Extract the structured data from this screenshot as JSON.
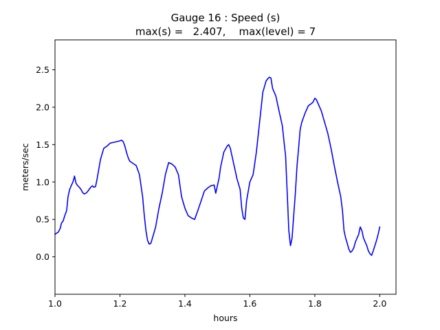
{
  "chart_data": {
    "type": "line",
    "title": "Gauge 16 : Speed (s)",
    "subtitle": "max(s) =   2.407,    max(level) = 7",
    "xlabel": "hours",
    "ylabel": "meters/sec",
    "xlim": [
      1.0,
      2.05
    ],
    "ylim": [
      -0.5,
      2.9
    ],
    "xticks": [
      1.0,
      1.2,
      1.4,
      1.6,
      1.8,
      2.0
    ],
    "xtick_labels": [
      "1.0",
      "1.2",
      "1.4",
      "1.6",
      "1.8",
      "2.0"
    ],
    "yticks": [
      0.0,
      0.5,
      1.0,
      1.5,
      2.0,
      2.5
    ],
    "ytick_labels": [
      "0.0",
      "0.5",
      "1.0",
      "1.5",
      "2.0",
      "2.5"
    ],
    "grid": false,
    "series": [
      {
        "color": "#0000ff",
        "x": [
          1.0,
          1.006,
          1.01,
          1.016,
          1.02,
          1.025,
          1.03,
          1.036,
          1.04,
          1.045,
          1.05,
          1.055,
          1.058,
          1.06,
          1.065,
          1.07,
          1.075,
          1.08,
          1.085,
          1.09,
          1.095,
          1.1,
          1.105,
          1.11,
          1.115,
          1.12,
          1.125,
          1.13,
          1.14,
          1.15,
          1.16,
          1.17,
          1.18,
          1.19,
          1.2,
          1.205,
          1.21,
          1.215,
          1.22,
          1.225,
          1.23,
          1.24,
          1.25,
          1.26,
          1.27,
          1.275,
          1.28,
          1.285,
          1.29,
          1.295,
          1.3,
          1.31,
          1.32,
          1.33,
          1.34,
          1.35,
          1.36,
          1.37,
          1.38,
          1.39,
          1.4,
          1.41,
          1.42,
          1.43,
          1.44,
          1.45,
          1.46,
          1.47,
          1.48,
          1.49,
          1.495,
          1.5,
          1.505,
          1.51,
          1.52,
          1.53,
          1.535,
          1.54,
          1.545,
          1.55,
          1.555,
          1.56,
          1.57,
          1.575,
          1.58,
          1.585,
          1.59,
          1.6,
          1.61,
          1.62,
          1.63,
          1.64,
          1.65,
          1.655,
          1.66,
          1.665,
          1.67,
          1.675,
          1.68,
          1.69,
          1.7,
          1.705,
          1.71,
          1.715,
          1.72,
          1.725,
          1.73,
          1.735,
          1.74,
          1.745,
          1.75,
          1.755,
          1.76,
          1.77,
          1.78,
          1.79,
          1.795,
          1.8,
          1.805,
          1.81,
          1.82,
          1.83,
          1.84,
          1.85,
          1.86,
          1.87,
          1.88,
          1.885,
          1.89,
          1.895,
          1.9,
          1.905,
          1.91,
          1.915,
          1.92,
          1.925,
          1.93,
          1.935,
          1.94,
          1.945,
          1.95,
          1.955,
          1.96,
          1.965,
          1.97,
          1.975,
          1.98,
          1.985,
          1.99,
          1.995,
          2.0
        ],
        "y": [
          0.3,
          0.32,
          0.33,
          0.38,
          0.45,
          0.48,
          0.55,
          0.62,
          0.8,
          0.9,
          0.95,
          1.0,
          1.04,
          1.08,
          0.98,
          0.95,
          0.93,
          0.9,
          0.86,
          0.84,
          0.85,
          0.87,
          0.9,
          0.93,
          0.95,
          0.93,
          0.94,
          1.05,
          1.3,
          1.45,
          1.48,
          1.52,
          1.53,
          1.54,
          1.55,
          1.56,
          1.54,
          1.48,
          1.4,
          1.33,
          1.28,
          1.25,
          1.22,
          1.1,
          0.8,
          0.55,
          0.35,
          0.22,
          0.17,
          0.18,
          0.25,
          0.4,
          0.65,
          0.85,
          1.1,
          1.26,
          1.24,
          1.2,
          1.1,
          0.8,
          0.65,
          0.55,
          0.52,
          0.5,
          0.62,
          0.75,
          0.88,
          0.92,
          0.95,
          0.96,
          0.85,
          0.95,
          1.05,
          1.2,
          1.4,
          1.48,
          1.5,
          1.45,
          1.35,
          1.25,
          1.15,
          1.05,
          0.9,
          0.65,
          0.52,
          0.5,
          0.75,
          1.0,
          1.1,
          1.4,
          1.8,
          2.2,
          2.35,
          2.38,
          2.4,
          2.39,
          2.25,
          2.2,
          2.15,
          1.95,
          1.75,
          1.55,
          1.35,
          0.85,
          0.35,
          0.15,
          0.25,
          0.55,
          0.85,
          1.2,
          1.45,
          1.7,
          1.8,
          1.92,
          2.02,
          2.05,
          2.07,
          2.12,
          2.1,
          2.05,
          1.95,
          1.8,
          1.65,
          1.45,
          1.22,
          1.0,
          0.8,
          0.62,
          0.35,
          0.25,
          0.18,
          0.1,
          0.06,
          0.08,
          0.12,
          0.2,
          0.25,
          0.3,
          0.4,
          0.35,
          0.25,
          0.2,
          0.15,
          0.08,
          0.04,
          0.02,
          0.08,
          0.15,
          0.22,
          0.3,
          0.4
        ]
      }
    ]
  }
}
